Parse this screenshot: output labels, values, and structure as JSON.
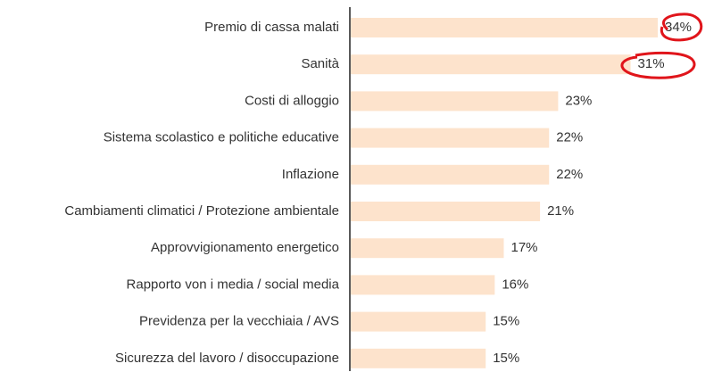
{
  "chart_data": {
    "type": "bar",
    "orientation": "horizontal",
    "categories": [
      "Premio di cassa malati",
      "Sanità",
      "Costi di alloggio",
      "Sistema scolastico e politiche educative",
      "Inflazione",
      "Cambiamenti climatici / Protezione ambientale",
      "Approvvigionamento energetico",
      "Rapporto von i media / social media",
      "Previdenza per la vecchiaia / AVS",
      "Sicurezza del lavoro / disoccupazione"
    ],
    "values": [
      34,
      31,
      23,
      22,
      22,
      21,
      17,
      16,
      15,
      15
    ],
    "value_labels": [
      "34%",
      "31%",
      "23%",
      "22%",
      "22%",
      "21%",
      "17%",
      "16%",
      "15%",
      "15%"
    ],
    "color": "#fde3cc"
  }
}
